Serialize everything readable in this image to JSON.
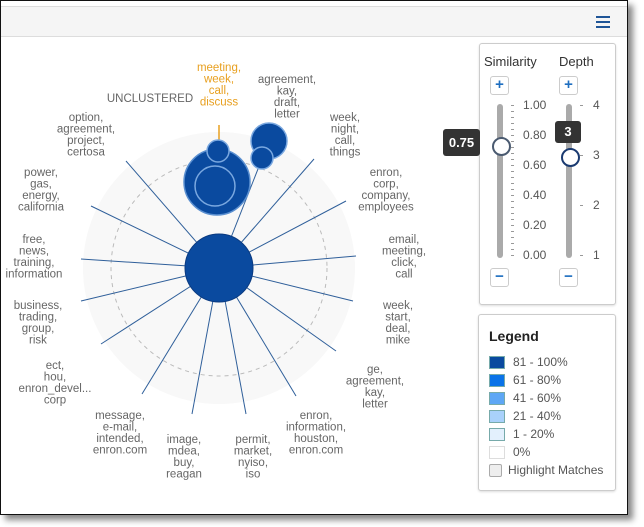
{
  "header": {
    "menu_icon": "hamburger-menu-icon"
  },
  "graph": {
    "center_label": "UNCLUSTERED",
    "selected_topic": [
      "meeting,",
      "week,",
      "call,",
      "discuss"
    ],
    "topics": [
      [
        "agreement,",
        "kay,",
        "draft,",
        "letter"
      ],
      [
        "week,",
        "night,",
        "call,",
        "things"
      ],
      [
        "enron,",
        "corp,",
        "company,",
        "employees"
      ],
      [
        "email,",
        "meeting,",
        "click,",
        "call"
      ],
      [
        "week,",
        "start,",
        "deal,",
        "mike"
      ],
      [
        "ge,",
        "agreement,",
        "kay,",
        "letter"
      ],
      [
        "enron,",
        "information,",
        "houston,",
        "enron.com"
      ],
      [
        "permit,",
        "market,",
        "nyiso,",
        "iso"
      ],
      [
        "image,",
        "mdea,",
        "buy,",
        "reagan"
      ],
      [
        "message,",
        "e-mail,",
        "intended,",
        "enron.com"
      ],
      [
        "ect,",
        "hou,",
        "enron_devel...",
        "corp"
      ],
      [
        "business,",
        "trading,",
        "group,",
        "risk"
      ],
      [
        "free,",
        "news,",
        "training,",
        "information"
      ],
      [
        "power,",
        "gas,",
        "energy,",
        "california"
      ],
      [
        "option,",
        "agreement,",
        "project,",
        "certosa"
      ]
    ],
    "colors": {
      "node": "#0a4a9f",
      "selected": "#e8a020",
      "spoke": "#2f5f9a"
    }
  },
  "controls": {
    "similarity": {
      "title": "Similarity",
      "value": 0.75,
      "value_label": "0.75",
      "ticks": [
        "1.00",
        "0.80",
        "0.60",
        "0.40",
        "0.20",
        "0.00"
      ]
    },
    "depth": {
      "title": "Depth",
      "value": 3,
      "value_label": "3",
      "ticks": [
        "4",
        "3",
        "2",
        "1"
      ]
    },
    "plus": "+",
    "minus": "−"
  },
  "legend": {
    "title": "Legend",
    "items": [
      {
        "label": "81 - 100%",
        "color": "#0a4a9f"
      },
      {
        "label": "61 - 80%",
        "color": "#0a73e8"
      },
      {
        "label": "41 - 60%",
        "color": "#5ea7f5"
      },
      {
        "label": "21 - 40%",
        "color": "#a9d1fb"
      },
      {
        "label": "1 - 20%",
        "color": "#e3f0fd"
      },
      {
        "label": "0%",
        "color": "#ffffff"
      }
    ],
    "highlight_label": "Highlight Matches"
  }
}
